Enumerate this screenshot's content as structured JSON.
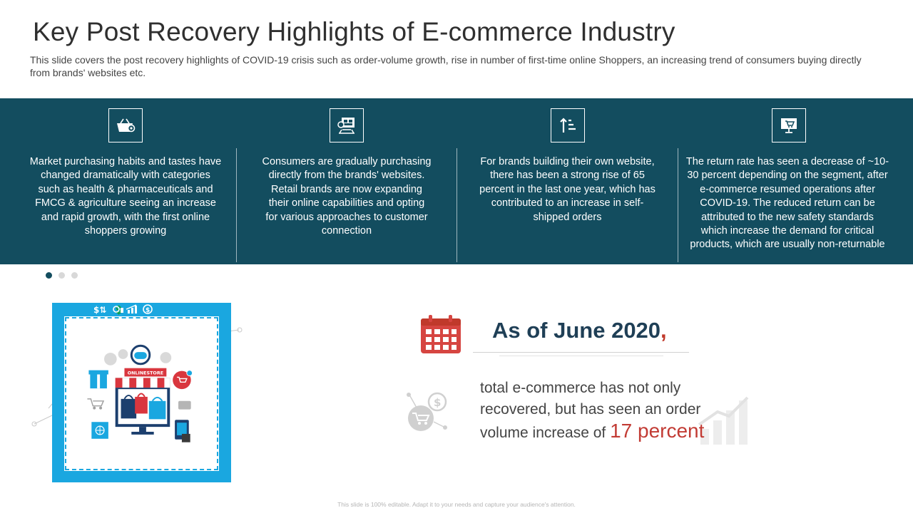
{
  "header": {
    "title": "Key Post Recovery Highlights of E-commerce Industry",
    "subtitle": "This slide covers the post recovery highlights of COVID-19 crisis such as order-volume growth, rise in number of first-time online Shoppers, an increasing trend of consumers buying directly from brands' websites etc."
  },
  "highlights": [
    {
      "icon": "shopping-basket-icon",
      "lines": [
        "Market purchasing habits and tastes have",
        "changed dramatically with categories",
        "such as health & pharmaceuticals and",
        "FMCG & agriculture seeing an increase",
        "and rapid growth, with the first online",
        "shoppers growing"
      ]
    },
    {
      "icon": "online-store-icon",
      "lines": [
        "Consumers are gradually purchasing",
        "directly from the brands' websites.",
        "Retail brands are now expanding",
        "their online capabilities and opting",
        "for various approaches to customer",
        "connection"
      ]
    },
    {
      "icon": "sort-ascending-icon",
      "lines": [
        "For brands building their own website,",
        "there has been a strong rise of 65",
        "percent in the last one year, which has",
        "contributed to an increase in self-",
        "shipped orders"
      ]
    },
    {
      "icon": "monitor-cart-icon",
      "lines": [
        "The return rate has seen a decrease of ~10-",
        "30 percent depending on the segment, after",
        "e-commerce resumed operations after",
        "COVID-19. The reduced return can be",
        "attributed to the new safety standards",
        "which increase the demand for critical",
        "products, which are usually non-returnable"
      ]
    }
  ],
  "carousel": {
    "count": 3,
    "active": 0
  },
  "store_illustration": {
    "sign_text": "ONLINESTORE"
  },
  "stat": {
    "date_label": "As of June 2020",
    "date_punct": ",",
    "text_line1": "total e-commerce has not only",
    "text_line2": "recovered, but has seen an order",
    "text_line3": "volume increase of ",
    "highlight": "17 percent"
  },
  "footer": {
    "note": "This slide is 100% editable. Adapt it to your needs and capture your audience's attention."
  },
  "colors": {
    "band": "#134d5f",
    "accent_red": "#c23b34",
    "frame_blue": "#1aa7e0",
    "heading_navy": "#1f3f56"
  }
}
